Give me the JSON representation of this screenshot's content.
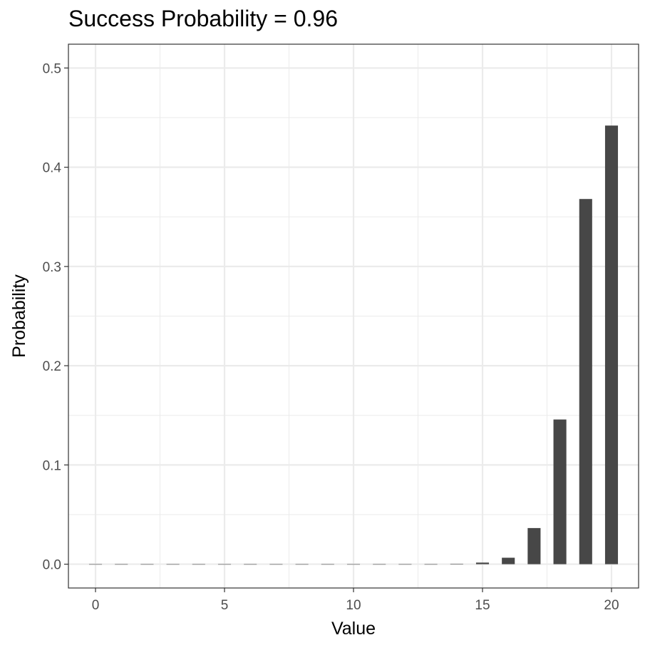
{
  "chart_data": {
    "type": "bar",
    "title": "Success Probability = 0.96",
    "xlabel": "Value",
    "ylabel": "Probability",
    "x": [
      0,
      1,
      2,
      3,
      4,
      5,
      6,
      7,
      8,
      9,
      10,
      11,
      12,
      13,
      14,
      15,
      16,
      17,
      18,
      19,
      20
    ],
    "values": [
      0,
      0,
      0,
      0,
      0,
      0,
      0,
      0,
      0,
      0,
      0,
      0,
      0,
      0,
      0.0002,
      0.0016,
      0.0065,
      0.0364,
      0.1458,
      0.368,
      0.442
    ],
    "xlim": [
      -1.05,
      21.05
    ],
    "ylim": [
      -0.024,
      0.524
    ],
    "xticks": [
      0,
      5,
      10,
      15,
      20
    ],
    "xtick_labels": [
      "0",
      "5",
      "10",
      "15",
      "20"
    ],
    "yticks": [
      0.0,
      0.1,
      0.2,
      0.3,
      0.4,
      0.5
    ],
    "ytick_labels": [
      "0.0",
      "0.1",
      "0.2",
      "0.3",
      "0.4",
      "0.5"
    ],
    "grid": true,
    "theme": "bw",
    "bar_color": "#474747",
    "grid_color": "#ebebeb",
    "panel_border_color": "#333333"
  }
}
